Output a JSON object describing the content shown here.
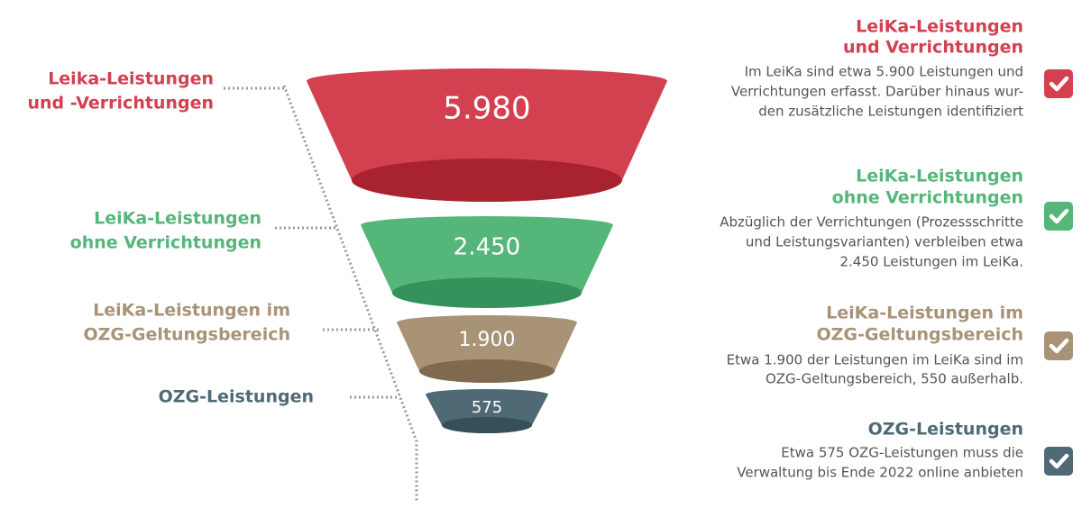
{
  "stages": [
    {
      "left": [
        "Leika-Leistungen",
        "und -Verrichtungen"
      ],
      "value": "5.980",
      "title": [
        "LeiKa-Leistungen",
        "und Verrichtungen"
      ],
      "text": [
        "Im LeiKa sind etwa 5.900 Leistungen und",
        "Verrichtungen erfasst. Darüber hinaus wur-",
        "den zusätzliche Leistungen identifiziert"
      ],
      "color": "#d3404f"
    },
    {
      "left": [
        "LeiKa-Leistungen",
        "ohne Verrichtungen"
      ],
      "value": "2.450",
      "title": [
        "LeiKa-Leistungen",
        "ohne Verrichtungen"
      ],
      "text": [
        "Abzüglich der Verrichtungen (Prozessschritte",
        "und Leistungsvarianten) verbleiben etwa",
        "2.450 Leistungen im LeiKa."
      ],
      "color": "#55b67a"
    },
    {
      "left": [
        "LeiKa-Leistungen im",
        "OZG-Geltungsbereich"
      ],
      "value": "1.900",
      "title": [
        "LeiKa-Leistungen im",
        "OZG-Geltungsbereich"
      ],
      "text": [
        "Etwa 1.900 der Leistungen im LeiKa sind im",
        "OZG-Geltungsbereich, 550 außerhalb."
      ],
      "color": "#a89377"
    },
    {
      "left": [
        "OZG-Leistungen"
      ],
      "value": "575",
      "title": [
        "OZG-Leistungen"
      ],
      "text": [
        "Etwa 575 OZG-Leistungen muss die",
        "Verwaltung bis Ende 2022 online anbieten"
      ],
      "color": "#4f6a75"
    }
  ]
}
